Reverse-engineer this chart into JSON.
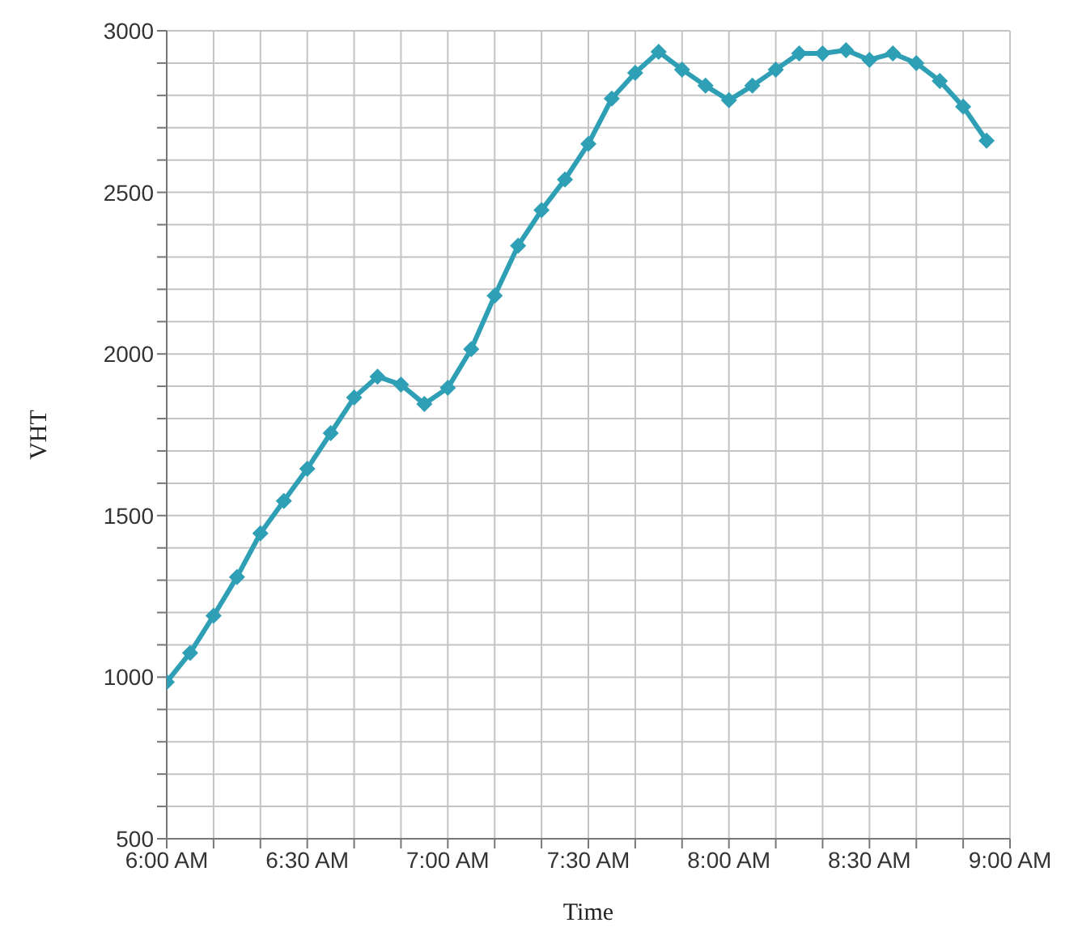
{
  "chart_data": {
    "type": "line",
    "xlabel": "Time",
    "ylabel": "VHT",
    "x": [
      6,
      6.0833,
      6.1667,
      6.25,
      6.3333,
      6.4167,
      6.5,
      6.5833,
      6.6667,
      6.75,
      6.8333,
      6.9167,
      7,
      7.0833,
      7.1667,
      7.25,
      7.3333,
      7.4167,
      7.5,
      7.5833,
      7.6667,
      7.75,
      7.8333,
      7.9167,
      8,
      8.0833,
      8.1667,
      8.25,
      8.3333,
      8.4167,
      8.5,
      8.5833,
      8.6667,
      8.75,
      8.8333,
      8.9167
    ],
    "series": [
      {
        "color": "#2e9fb5",
        "values": [
          985,
          1075,
          1190,
          1310,
          1445,
          1545,
          1645,
          1755,
          1865,
          1930,
          1905,
          1845,
          1895,
          2015,
          2180,
          2335,
          2445,
          2540,
          2650,
          2790,
          2870,
          2935,
          2880,
          2830,
          2785,
          2830,
          2880,
          2930,
          2930,
          2940,
          2910,
          2930,
          2900,
          2845,
          2765,
          2660
        ]
      }
    ],
    "xlim": [
      6,
      9
    ],
    "xticks": [
      {
        "value": 6,
        "label": "6:00 AM"
      },
      {
        "value": 6.1667,
        "label": null
      },
      {
        "value": 6.3333,
        "label": null
      },
      {
        "value": 6.5,
        "label": "6:30 AM"
      },
      {
        "value": 6.6667,
        "label": null
      },
      {
        "value": 6.8333,
        "label": null
      },
      {
        "value": 7,
        "label": "7:00 AM"
      },
      {
        "value": 7.1667,
        "label": null
      },
      {
        "value": 7.3333,
        "label": null
      },
      {
        "value": 7.5,
        "label": "7:30 AM"
      },
      {
        "value": 7.6667,
        "label": null
      },
      {
        "value": 7.8333,
        "label": null
      },
      {
        "value": 8,
        "label": "8:00 AM"
      },
      {
        "value": 8.1667,
        "label": null
      },
      {
        "value": 8.3333,
        "label": null
      },
      {
        "value": 8.5,
        "label": "8:30 AM"
      },
      {
        "value": 8.6667,
        "label": null
      },
      {
        "value": 8.8333,
        "label": null
      },
      {
        "value": 9,
        "label": "9:00 AM"
      }
    ],
    "ylim": [
      500,
      3000
    ],
    "yticks": [
      500,
      {
        "value": 600,
        "label": null
      },
      {
        "value": 700,
        "label": null
      },
      {
        "value": 800,
        "label": null
      },
      {
        "value": 900,
        "label": null
      },
      1000,
      {
        "value": 1100,
        "label": null
      },
      {
        "value": 1200,
        "label": null
      },
      {
        "value": 1300,
        "label": null
      },
      {
        "value": 1400,
        "label": null
      },
      1500,
      {
        "value": 1600,
        "label": null
      },
      {
        "value": 1700,
        "label": null
      },
      {
        "value": 1800,
        "label": null
      },
      {
        "value": 1900,
        "label": null
      },
      2000,
      {
        "value": 2100,
        "label": null
      },
      {
        "value": 2200,
        "label": null
      },
      {
        "value": 2300,
        "label": null
      },
      {
        "value": 2400,
        "label": null
      },
      2500,
      {
        "value": 2600,
        "label": null
      },
      {
        "value": 2700,
        "label": null
      },
      {
        "value": 2800,
        "label": null
      },
      {
        "value": 2900,
        "label": null
      },
      3000
    ],
    "grid": true,
    "marker": "diamond",
    "line_style": "solid",
    "legend": false
  }
}
